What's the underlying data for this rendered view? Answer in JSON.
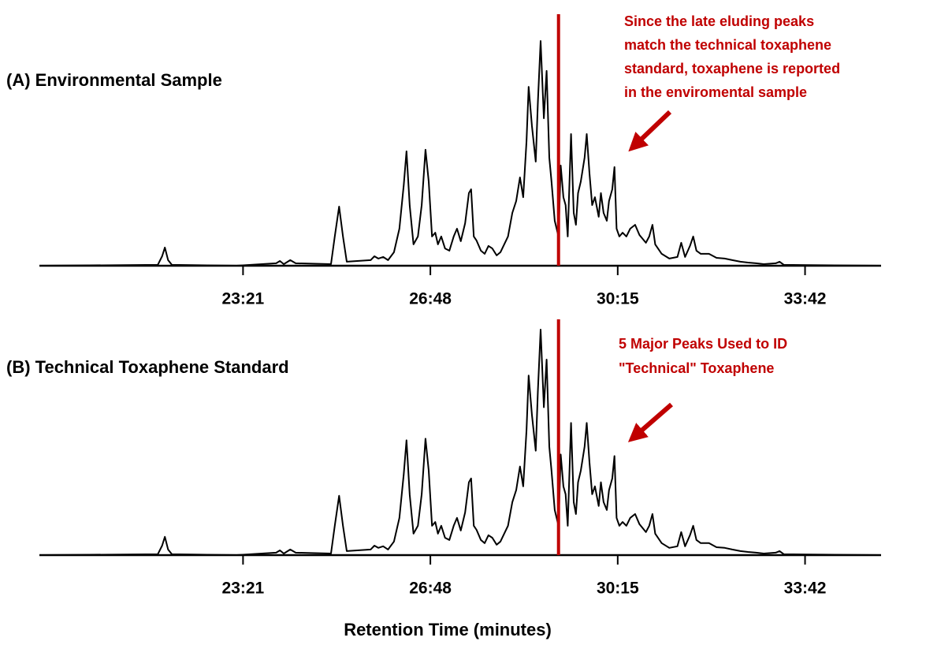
{
  "chart_data": [
    {
      "type": "line",
      "title": "(A) Environmental Sample",
      "annotation": [
        "Since the late eluding peaks",
        "match the technical toxaphene",
        "standard, toxaphene is reported",
        "in the enviromental sample"
      ],
      "color": "#000000",
      "vline": 29.16,
      "vline_color": "#c00000",
      "xlim": [
        19.6,
        35.1
      ],
      "ylim": [
        0,
        105
      ],
      "xticks": [
        {
          "value": 23.35,
          "label": "23:21"
        },
        {
          "value": 26.8,
          "label": "26:48"
        },
        {
          "value": 30.25,
          "label": "30:15"
        },
        {
          "value": 33.7,
          "label": "33:42"
        }
      ],
      "x": [
        19.61,
        21.78,
        21.86,
        21.91,
        21.97,
        22.04,
        23.23,
        23.96,
        24.03,
        24.1,
        24.22,
        24.32,
        24.97,
        25.04,
        25.12,
        25.19,
        25.26,
        25.7,
        25.77,
        25.84,
        25.93,
        26.02,
        26.13,
        26.23,
        26.31,
        26.36,
        26.42,
        26.49,
        26.57,
        26.64,
        26.71,
        26.77,
        26.83,
        26.89,
        26.94,
        27.0,
        27.07,
        27.15,
        27.23,
        27.29,
        27.36,
        27.44,
        27.51,
        27.55,
        27.6,
        27.65,
        27.73,
        27.8,
        27.87,
        27.94,
        28.02,
        28.09,
        28.16,
        28.23,
        28.31,
        28.38,
        28.45,
        28.51,
        28.57,
        28.61,
        28.67,
        28.74,
        28.78,
        28.83,
        28.89,
        28.94,
        28.99,
        29.03,
        29.09,
        29.16,
        29.2,
        29.25,
        29.29,
        29.33,
        29.39,
        29.44,
        29.48,
        29.52,
        29.57,
        29.64,
        29.68,
        29.73,
        29.78,
        29.83,
        29.9,
        29.94,
        29.99,
        30.05,
        30.09,
        30.15,
        30.19,
        30.23,
        30.28,
        30.34,
        30.41,
        30.48,
        30.57,
        30.65,
        30.77,
        30.83,
        30.89,
        30.94,
        31.06,
        31.2,
        31.35,
        31.42,
        31.49,
        31.58,
        31.64,
        31.7,
        31.78,
        31.93,
        32.07,
        32.22,
        32.36,
        32.51,
        32.65,
        32.8,
        32.94,
        33.16,
        33.23,
        33.31,
        35.09
      ],
      "values": [
        0,
        0.4,
        4.2,
        8.1,
        2.5,
        0.4,
        0,
        1.1,
        2.1,
        0.7,
        2.5,
        1.1,
        0.7,
        13.0,
        26.3,
        13.0,
        1.8,
        2.5,
        4.2,
        3.2,
        3.9,
        2.5,
        6.0,
        16.5,
        35.8,
        50.9,
        26.7,
        9.5,
        13.0,
        27.0,
        51.6,
        37.5,
        13.0,
        14.7,
        9.5,
        13.0,
        7.7,
        6.7,
        13.0,
        16.5,
        10.9,
        18.9,
        32.3,
        34.0,
        13.0,
        11.2,
        6.7,
        5.3,
        8.8,
        7.7,
        4.6,
        6.0,
        9.5,
        13.0,
        23.5,
        28.8,
        39.3,
        30.5,
        55.4,
        79.6,
        62.1,
        46.3,
        72.6,
        100.0,
        65.6,
        86.7,
        48.1,
        37.5,
        20.0,
        13.0,
        44.6,
        30.5,
        27.0,
        13.0,
        58.6,
        23.5,
        18.2,
        32.3,
        37.5,
        48.1,
        58.6,
        41.1,
        27.0,
        30.5,
        21.8,
        32.3,
        23.5,
        20.0,
        28.8,
        34.0,
        43.9,
        16.5,
        13.0,
        14.7,
        13.0,
        16.5,
        18.2,
        13.7,
        10.2,
        13.0,
        18.2,
        9.5,
        5.3,
        3.2,
        3.9,
        10.2,
        3.9,
        8.8,
        13.0,
        6.7,
        5.3,
        5.3,
        3.5,
        3.2,
        2.5,
        1.8,
        1.4,
        1.1,
        0.7,
        1.1,
        1.8,
        0.4,
        0
      ]
    },
    {
      "type": "line",
      "title": "(B) Technical Toxaphene Standard",
      "annotation": [
        "5 Major Peaks Used to ID",
        "\"Technical\" Toxaphene"
      ],
      "xlabel": "Retention Time (minutes)",
      "color": "#000000",
      "vline": 29.16,
      "vline_color": "#c00000",
      "xlim": [
        19.6,
        35.1
      ],
      "ylim": [
        0,
        105
      ],
      "xticks": [
        {
          "value": 23.35,
          "label": "23:21"
        },
        {
          "value": 26.8,
          "label": "26:48"
        },
        {
          "value": 30.25,
          "label": "30:15"
        },
        {
          "value": 33.7,
          "label": "33:42"
        }
      ],
      "x": [
        19.61,
        21.78,
        21.86,
        21.91,
        21.97,
        22.04,
        23.23,
        23.96,
        24.03,
        24.1,
        24.22,
        24.32,
        24.97,
        25.04,
        25.12,
        25.19,
        25.26,
        25.7,
        25.77,
        25.84,
        25.93,
        26.02,
        26.13,
        26.23,
        26.31,
        26.36,
        26.42,
        26.49,
        26.57,
        26.64,
        26.71,
        26.77,
        26.83,
        26.89,
        26.94,
        27.0,
        27.07,
        27.15,
        27.23,
        27.29,
        27.36,
        27.44,
        27.51,
        27.55,
        27.6,
        27.65,
        27.73,
        27.8,
        27.87,
        27.94,
        28.02,
        28.09,
        28.16,
        28.23,
        28.31,
        28.38,
        28.45,
        28.51,
        28.57,
        28.61,
        28.67,
        28.74,
        28.78,
        28.83,
        28.89,
        28.94,
        28.99,
        29.03,
        29.09,
        29.16,
        29.2,
        29.25,
        29.29,
        29.33,
        29.39,
        29.44,
        29.48,
        29.52,
        29.57,
        29.64,
        29.68,
        29.73,
        29.78,
        29.83,
        29.9,
        29.94,
        29.99,
        30.05,
        30.09,
        30.15,
        30.19,
        30.23,
        30.28,
        30.34,
        30.41,
        30.48,
        30.57,
        30.65,
        30.77,
        30.83,
        30.89,
        30.94,
        31.06,
        31.2,
        31.35,
        31.42,
        31.49,
        31.58,
        31.64,
        31.7,
        31.78,
        31.93,
        32.07,
        32.22,
        32.36,
        32.51,
        32.65,
        32.8,
        32.94,
        33.16,
        33.23,
        33.31,
        35.09
      ],
      "values": [
        0,
        0.4,
        4.2,
        8.1,
        2.5,
        0.4,
        0,
        1.1,
        2.1,
        0.7,
        2.5,
        1.1,
        0.7,
        13.0,
        26.3,
        13.0,
        1.8,
        2.5,
        4.2,
        3.2,
        3.9,
        2.5,
        6.0,
        16.5,
        35.8,
        50.9,
        26.7,
        9.5,
        13.0,
        27.0,
        51.6,
        37.5,
        13.0,
        14.7,
        9.5,
        13.0,
        7.7,
        6.7,
        13.0,
        16.5,
        10.9,
        18.9,
        32.3,
        34.0,
        13.0,
        11.2,
        6.7,
        5.3,
        8.8,
        7.7,
        4.6,
        6.0,
        9.5,
        13.0,
        23.5,
        28.8,
        39.3,
        30.5,
        55.4,
        79.6,
        62.1,
        46.3,
        72.6,
        100.0,
        65.6,
        86.7,
        48.1,
        37.5,
        20.0,
        13.0,
        44.6,
        30.5,
        27.0,
        13.0,
        58.6,
        23.5,
        18.2,
        32.3,
        37.5,
        48.1,
        58.6,
        41.1,
        27.0,
        30.5,
        21.8,
        32.3,
        23.5,
        20.0,
        28.8,
        34.0,
        43.9,
        16.5,
        13.0,
        14.7,
        13.0,
        16.5,
        18.2,
        13.7,
        10.2,
        13.0,
        18.2,
        9.5,
        5.3,
        3.2,
        3.9,
        10.2,
        3.9,
        8.8,
        13.0,
        6.7,
        5.3,
        5.3,
        3.5,
        3.2,
        2.5,
        1.8,
        1.4,
        1.1,
        0.7,
        1.1,
        1.8,
        0.4,
        0
      ]
    }
  ]
}
